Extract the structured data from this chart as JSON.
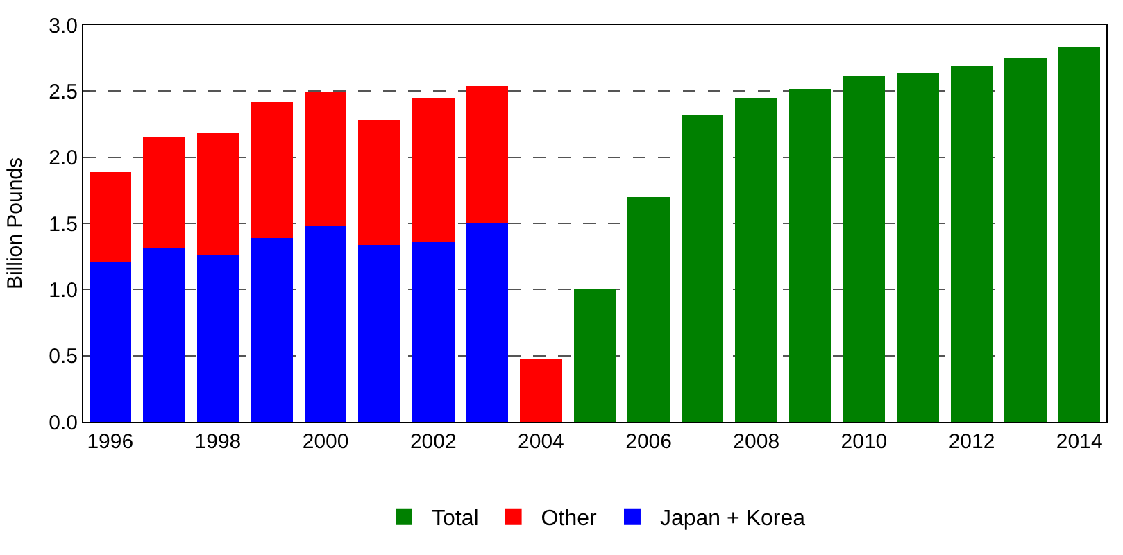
{
  "chart_data": {
    "type": "bar",
    "stacked": true,
    "ylabel": "Billion Pounds",
    "categories": [
      "1996",
      null,
      "1998",
      null,
      "2000",
      null,
      "2002",
      null,
      "2004",
      null,
      "2006",
      null,
      "2008",
      null,
      "2010",
      null,
      "2012",
      null,
      "2014"
    ],
    "series": [
      {
        "name": "Japan + Korea",
        "color": "#0000ff",
        "values": [
          1.21,
          1.31,
          1.26,
          1.39,
          1.48,
          1.34,
          1.36,
          1.5,
          null,
          null,
          null,
          null,
          null,
          null,
          null,
          null,
          null,
          null,
          null
        ]
      },
      {
        "name": "Other",
        "color": "#ff0000",
        "values": [
          0.68,
          0.84,
          0.92,
          1.03,
          1.01,
          0.94,
          1.09,
          1.04,
          0.47,
          null,
          null,
          null,
          null,
          null,
          null,
          null,
          null,
          null,
          null
        ]
      },
      {
        "name": "Total",
        "color": "#008000",
        "values": [
          null,
          null,
          null,
          null,
          null,
          null,
          null,
          null,
          null,
          1.0,
          1.7,
          2.32,
          2.45,
          2.51,
          2.61,
          2.64,
          2.69,
          2.75,
          2.83
        ]
      }
    ],
    "ylim": [
      0,
      3
    ],
    "yticks": [
      {
        "value": 0,
        "label": "0.0"
      },
      {
        "value": 0.5,
        "label": "0.5"
      },
      {
        "value": 1,
        "label": "1.0"
      },
      {
        "value": 1.5,
        "label": "1.5"
      },
      {
        "value": 2,
        "label": "2.0"
      },
      {
        "value": 2.5,
        "label": "2.5"
      },
      {
        "value": 3,
        "label": "3.0"
      }
    ],
    "grid": "y",
    "legend": "bottom"
  }
}
